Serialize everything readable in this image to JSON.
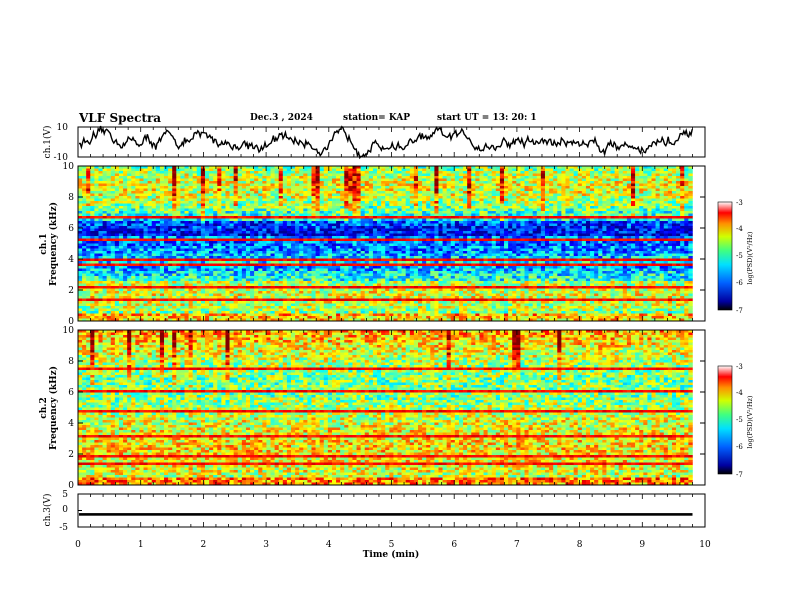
{
  "header": {
    "title": "VLF Spectra",
    "date": "Dec.3  , 2024",
    "station": "station= KAP",
    "start": "start  UT  =   13: 20: 1"
  },
  "colors": {
    "scale": [
      "#000090",
      "#0000ff",
      "#0080ff",
      "#00ffff",
      "#80ff80",
      "#ffff00",
      "#ff8000",
      "#ff0000",
      "#800000"
    ],
    "axis": "#000000",
    "bar": "#000000"
  },
  "chart_data": [
    {
      "type": "line",
      "name": "ch1-voltage",
      "ylabel": "ch.1(V)",
      "ylim": [
        -10,
        10
      ],
      "yticks": [
        "10",
        "-10"
      ],
      "xlim": [
        0,
        10
      ],
      "description_of_series": "noisy waveform oscillating mostly between -8 and 8 V"
    },
    {
      "type": "heatmap",
      "name": "ch1-spectrogram",
      "ylabel": "ch.1\nFrequency (kHz)",
      "ylabel_line1": "ch.1",
      "ylabel_line2": "Frequency (kHz)",
      "ylim": [
        0,
        10
      ],
      "yticks": [
        "0",
        "2",
        "4",
        "6",
        "8",
        "10"
      ],
      "xlim": [
        0,
        9.8
      ],
      "colorbar": {
        "label": "log(PSD)(V²/Hz)",
        "range": [
          -7,
          -3
        ],
        "ticks": [
          "-3",
          "-4",
          "-5",
          "-6",
          "-7"
        ]
      },
      "bands_khz": [
        1.5,
        2.3,
        3.7,
        4.0,
        5.3,
        6.8
      ]
    },
    {
      "type": "heatmap",
      "name": "ch2-spectrogram",
      "ylabel": "ch.2\nFrequency (kHz)",
      "ylabel_line1": "ch.2",
      "ylabel_line2": "Frequency (kHz)",
      "ylim": [
        0,
        10
      ],
      "yticks": [
        "0",
        "2",
        "4",
        "6",
        "8",
        "10"
      ],
      "xlim": [
        0,
        9.8
      ],
      "colorbar": {
        "label": "log(PSD)(V²/Hz)",
        "range": [
          -7,
          -3
        ],
        "ticks": [
          "-3",
          "-4",
          "-5",
          "-6",
          "-7"
        ]
      },
      "bands_khz": [
        1.5,
        2.0,
        3.2,
        4.8,
        6.2,
        7.6
      ]
    },
    {
      "type": "line",
      "name": "ch3-voltage",
      "ylabel": "ch.3(V)",
      "ylim": [
        -5,
        5
      ],
      "yticks": [
        "5",
        "0",
        "-5"
      ],
      "xlim": [
        0,
        10
      ],
      "level": [
        -0.8,
        -1.6
      ]
    }
  ],
  "xaxis": {
    "label": "Time  (min)",
    "ticks": [
      "0",
      "1",
      "2",
      "3",
      "4",
      "5",
      "6",
      "7",
      "8",
      "9",
      "10"
    ],
    "range": [
      0,
      10
    ]
  }
}
